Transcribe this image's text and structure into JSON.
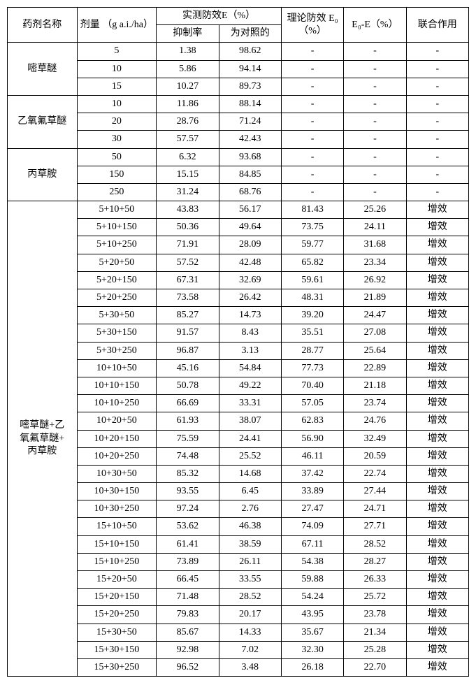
{
  "headers": {
    "name": "药剂名称",
    "dose": "剂量\n（g a.i./ha）",
    "measured": "实测防效E（%）",
    "inhibition": "抑制率",
    "vs_control": "为对照的",
    "theoretical": "理论防效\nE₀（%）",
    "difference": "E₀-E（%）",
    "joint": "联合作用"
  },
  "groups": [
    {
      "name": "嘧草醚",
      "rows": [
        {
          "dose": "5",
          "inh": "1.38",
          "ctrl": "98.62",
          "theo": "-",
          "diff": "-",
          "joint": "-"
        },
        {
          "dose": "10",
          "inh": "5.86",
          "ctrl": "94.14",
          "theo": "-",
          "diff": "-",
          "joint": "-"
        },
        {
          "dose": "15",
          "inh": "10.27",
          "ctrl": "89.73",
          "theo": "-",
          "diff": "-",
          "joint": "-"
        }
      ]
    },
    {
      "name": "乙氧氟草醚",
      "rows": [
        {
          "dose": "10",
          "inh": "11.86",
          "ctrl": "88.14",
          "theo": "-",
          "diff": "-",
          "joint": "-"
        },
        {
          "dose": "20",
          "inh": "28.76",
          "ctrl": "71.24",
          "theo": "-",
          "diff": "-",
          "joint": "-"
        },
        {
          "dose": "30",
          "inh": "57.57",
          "ctrl": "42.43",
          "theo": "-",
          "diff": "-",
          "joint": "-"
        }
      ]
    },
    {
      "name": "丙草胺",
      "rows": [
        {
          "dose": "50",
          "inh": "6.32",
          "ctrl": "93.68",
          "theo": "-",
          "diff": "-",
          "joint": "-"
        },
        {
          "dose": "150",
          "inh": "15.15",
          "ctrl": "84.85",
          "theo": "-",
          "diff": "-",
          "joint": "-"
        },
        {
          "dose": "250",
          "inh": "31.24",
          "ctrl": "68.76",
          "theo": "-",
          "diff": "-",
          "joint": "-"
        }
      ]
    },
    {
      "name": "嘧草醚+乙\n氧氟草醚+\n丙草胺",
      "rows": [
        {
          "dose": "5+10+50",
          "inh": "43.83",
          "ctrl": "56.17",
          "theo": "81.43",
          "diff": "25.26",
          "joint": "增效"
        },
        {
          "dose": "5+10+150",
          "inh": "50.36",
          "ctrl": "49.64",
          "theo": "73.75",
          "diff": "24.11",
          "joint": "增效"
        },
        {
          "dose": "5+10+250",
          "inh": "71.91",
          "ctrl": "28.09",
          "theo": "59.77",
          "diff": "31.68",
          "joint": "增效"
        },
        {
          "dose": "5+20+50",
          "inh": "57.52",
          "ctrl": "42.48",
          "theo": "65.82",
          "diff": "23.34",
          "joint": "增效"
        },
        {
          "dose": "5+20+150",
          "inh": "67.31",
          "ctrl": "32.69",
          "theo": "59.61",
          "diff": "26.92",
          "joint": "增效"
        },
        {
          "dose": "5+20+250",
          "inh": "73.58",
          "ctrl": "26.42",
          "theo": "48.31",
          "diff": "21.89",
          "joint": "增效"
        },
        {
          "dose": "5+30+50",
          "inh": "85.27",
          "ctrl": "14.73",
          "theo": "39.20",
          "diff": "24.47",
          "joint": "增效"
        },
        {
          "dose": "5+30+150",
          "inh": "91.57",
          "ctrl": "8.43",
          "theo": "35.51",
          "diff": "27.08",
          "joint": "增效"
        },
        {
          "dose": "5+30+250",
          "inh": "96.87",
          "ctrl": "3.13",
          "theo": "28.77",
          "diff": "25.64",
          "joint": "增效"
        },
        {
          "dose": "10+10+50",
          "inh": "45.16",
          "ctrl": "54.84",
          "theo": "77.73",
          "diff": "22.89",
          "joint": "增效"
        },
        {
          "dose": "10+10+150",
          "inh": "50.78",
          "ctrl": "49.22",
          "theo": "70.40",
          "diff": "21.18",
          "joint": "增效"
        },
        {
          "dose": "10+10+250",
          "inh": "66.69",
          "ctrl": "33.31",
          "theo": "57.05",
          "diff": "23.74",
          "joint": "增效"
        },
        {
          "dose": "10+20+50",
          "inh": "61.93",
          "ctrl": "38.07",
          "theo": "62.83",
          "diff": "24.76",
          "joint": "增效"
        },
        {
          "dose": "10+20+150",
          "inh": "75.59",
          "ctrl": "24.41",
          "theo": "56.90",
          "diff": "32.49",
          "joint": "增效"
        },
        {
          "dose": "10+20+250",
          "inh": "74.48",
          "ctrl": "25.52",
          "theo": "46.11",
          "diff": "20.59",
          "joint": "增效"
        },
        {
          "dose": "10+30+50",
          "inh": "85.32",
          "ctrl": "14.68",
          "theo": "37.42",
          "diff": "22.74",
          "joint": "增效"
        },
        {
          "dose": "10+30+150",
          "inh": "93.55",
          "ctrl": "6.45",
          "theo": "33.89",
          "diff": "27.44",
          "joint": "增效"
        },
        {
          "dose": "10+30+250",
          "inh": "97.24",
          "ctrl": "2.76",
          "theo": "27.47",
          "diff": "24.71",
          "joint": "增效"
        },
        {
          "dose": "15+10+50",
          "inh": "53.62",
          "ctrl": "46.38",
          "theo": "74.09",
          "diff": "27.71",
          "joint": "增效"
        },
        {
          "dose": "15+10+150",
          "inh": "61.41",
          "ctrl": "38.59",
          "theo": "67.11",
          "diff": "28.52",
          "joint": "增效"
        },
        {
          "dose": "15+10+250",
          "inh": "73.89",
          "ctrl": "26.11",
          "theo": "54.38",
          "diff": "28.27",
          "joint": "增效"
        },
        {
          "dose": "15+20+50",
          "inh": "66.45",
          "ctrl": "33.55",
          "theo": "59.88",
          "diff": "26.33",
          "joint": "增效"
        },
        {
          "dose": "15+20+150",
          "inh": "71.48",
          "ctrl": "28.52",
          "theo": "54.24",
          "diff": "25.72",
          "joint": "增效"
        },
        {
          "dose": "15+20+250",
          "inh": "79.83",
          "ctrl": "20.17",
          "theo": "43.95",
          "diff": "23.78",
          "joint": "增效"
        },
        {
          "dose": "15+30+50",
          "inh": "85.67",
          "ctrl": "14.33",
          "theo": "35.67",
          "diff": "21.34",
          "joint": "增效"
        },
        {
          "dose": "15+30+150",
          "inh": "92.98",
          "ctrl": "7.02",
          "theo": "32.30",
          "diff": "25.28",
          "joint": "增效"
        },
        {
          "dose": "15+30+250",
          "inh": "96.52",
          "ctrl": "3.48",
          "theo": "26.18",
          "diff": "22.70",
          "joint": "增效"
        }
      ]
    }
  ]
}
